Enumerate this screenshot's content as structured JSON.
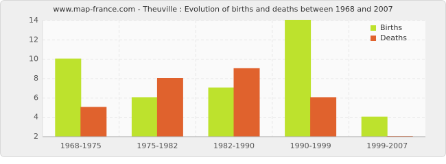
{
  "chart_data": {
    "type": "bar",
    "title": "www.map-france.com - Theuville : Evolution of births and deaths between 1968 and 2007",
    "categories": [
      "1968-1975",
      "1975-1982",
      "1982-1990",
      "1990-1999",
      "1999-2007"
    ],
    "series": [
      {
        "name": "Births",
        "color": "#bde22d",
        "values": [
          10,
          6,
          7,
          14,
          4
        ]
      },
      {
        "name": "Deaths",
        "color": "#e0622d",
        "values": [
          5,
          8,
          9,
          6,
          2
        ]
      }
    ],
    "ylim": [
      2,
      14
    ],
    "yticks": [
      2,
      4,
      6,
      8,
      10,
      12,
      14
    ],
    "grid": true,
    "legend": "top-right"
  }
}
